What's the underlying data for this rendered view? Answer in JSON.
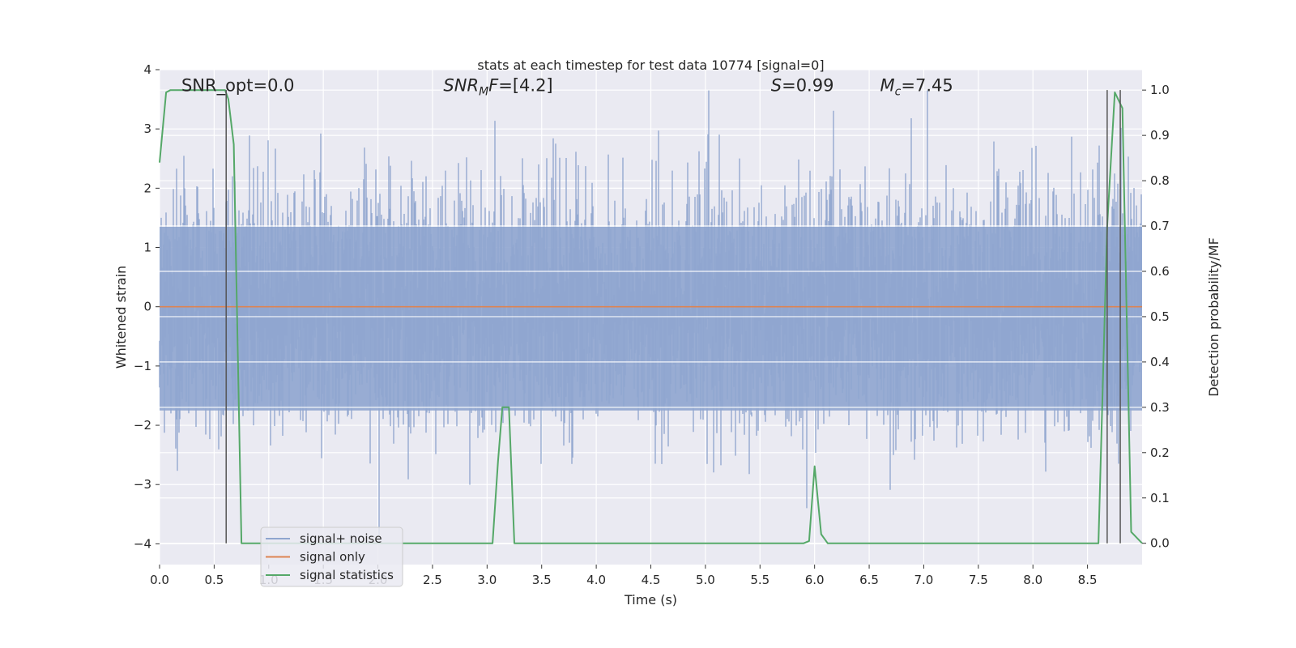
{
  "chart_data": {
    "type": "line",
    "title": "stats at each timestep for test data 10774 [signal=0]",
    "xlabel": "Time (s)",
    "ylabel": "Whitened strain",
    "y2label": "Detection probability/MF",
    "xlim": [
      0.0,
      9.0
    ],
    "ylim": [
      -4.35,
      4.0
    ],
    "y2lim": [
      -0.047,
      1.045
    ],
    "xticks": [
      "0.0",
      "0.5",
      "1.0",
      "1.5",
      "2.0",
      "2.5",
      "3.0",
      "3.5",
      "4.0",
      "4.5",
      "5.0",
      "5.5",
      "6.0",
      "6.5",
      "7.0",
      "7.5",
      "8.0",
      "8.5"
    ],
    "yticks": [
      "−4",
      "−3",
      "−2",
      "−1",
      "0",
      "1",
      "2",
      "3",
      "4"
    ],
    "y2ticks": [
      "0.0",
      "0.1",
      "0.2",
      "0.3",
      "0.4",
      "0.5",
      "0.6",
      "0.7",
      "0.8",
      "0.9",
      "1.0"
    ],
    "grid": true,
    "legend_position": "lower-left",
    "annotations": {
      "snr_opt": {
        "name": "SNR_opt",
        "value": "=0.0",
        "x": 0.2,
        "y": 3.75
      },
      "snr_mf": {
        "base": "SNR",
        "sub": "M",
        "rest": "F",
        "value": "=[4.2]",
        "x": 2.6,
        "y": 3.75
      },
      "s_value": {
        "name": "S",
        "value": "=0.99",
        "x": 5.6,
        "y": 3.75
      },
      "m_chirp": {
        "base": "M",
        "sub": "c",
        "value": "=7.45",
        "x": 6.6,
        "y": 3.75
      }
    },
    "series": [
      {
        "name": "signal+ noise",
        "color": "#8fa5cf",
        "kind": "noise",
        "sample_rate_hz": 512,
        "band_hi": 1.35,
        "band_lo": -1.75,
        "peak_max": 3.65,
        "trough_min": -3.85
      },
      {
        "name": "signal only",
        "color": "#dd8452",
        "kind": "constant",
        "value": 0.0
      },
      {
        "name": "signal statistics",
        "color": "#55a868",
        "kind": "line",
        "x": [
          0.0,
          0.06,
          0.1,
          0.6,
          0.63,
          0.68,
          0.75,
          8.0,
          8.6,
          8.68,
          8.75,
          8.82,
          8.9,
          9.0
        ],
        "y2": [
          0.84,
          0.995,
          1.0,
          1.0,
          0.98,
          0.88,
          0.0,
          0.0,
          0.0,
          0.7,
          0.995,
          0.96,
          0.025,
          0.0
        ],
        "bumps": [
          {
            "x": [
              3.05,
              3.1,
              3.14,
              3.2,
              3.25
            ],
            "y2": [
              0.0,
              0.18,
              0.3,
              0.3,
              0.0
            ]
          },
          {
            "x": [
              5.9,
              5.95,
              6.0,
              6.06,
              6.12
            ],
            "y2": [
              0.0,
              0.005,
              0.17,
              0.02,
              0.0
            ]
          }
        ]
      }
    ],
    "vertical_lines": [
      {
        "x": 0.61,
        "y2_top": 1.0,
        "color": "#555555"
      },
      {
        "x": 8.68,
        "y2_top": 1.0,
        "color": "#555555"
      },
      {
        "x": 8.8,
        "y2_top": 1.0,
        "color": "#555555"
      }
    ]
  }
}
